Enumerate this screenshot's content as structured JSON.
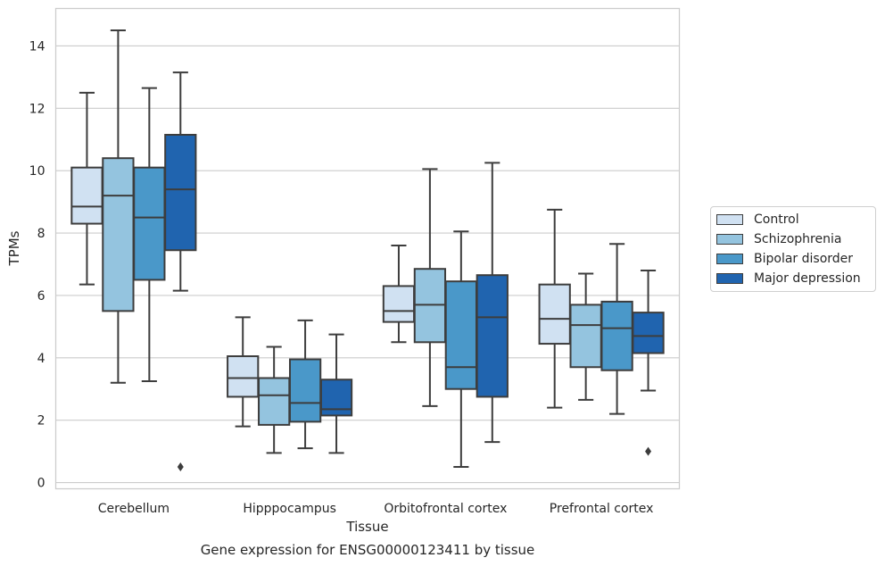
{
  "caption": "Gene expression for ENSG00000123411 by tissue",
  "chart_data": {
    "type": "box",
    "xlabel": "Tissue",
    "ylabel": "TPMs",
    "ylim": [
      -0.2,
      15.2
    ],
    "yticks": [
      0,
      2,
      4,
      6,
      8,
      10,
      12,
      14
    ],
    "grid": true,
    "legend_position": "right",
    "categories": [
      "Cerebellum",
      "Hipppocampus",
      "Orbitofrontal cortex",
      "Prefrontal cortex"
    ],
    "series": [
      {
        "name": "Control",
        "color": "#d0e1f2",
        "boxes": [
          {
            "whisker_low": 6.35,
            "q1": 8.3,
            "median": 8.85,
            "q3": 10.1,
            "whisker_high": 12.5,
            "outliers": []
          },
          {
            "whisker_low": 1.8,
            "q1": 2.75,
            "median": 3.35,
            "q3": 4.05,
            "whisker_high": 5.3,
            "outliers": []
          },
          {
            "whisker_low": 4.5,
            "q1": 5.15,
            "median": 5.5,
            "q3": 6.3,
            "whisker_high": 7.6,
            "outliers": []
          },
          {
            "whisker_low": 2.4,
            "q1": 4.45,
            "median": 5.25,
            "q3": 6.35,
            "whisker_high": 8.75,
            "outliers": []
          }
        ]
      },
      {
        "name": "Schizophrenia",
        "color": "#94c4df",
        "boxes": [
          {
            "whisker_low": 3.2,
            "q1": 5.5,
            "median": 9.2,
            "q3": 10.4,
            "whisker_high": 14.5,
            "outliers": []
          },
          {
            "whisker_low": 0.95,
            "q1": 1.85,
            "median": 2.8,
            "q3": 3.35,
            "whisker_high": 4.35,
            "outliers": []
          },
          {
            "whisker_low": 2.45,
            "q1": 4.5,
            "median": 5.7,
            "q3": 6.85,
            "whisker_high": 10.05,
            "outliers": []
          },
          {
            "whisker_low": 2.65,
            "q1": 3.7,
            "median": 5.05,
            "q3": 5.7,
            "whisker_high": 6.7,
            "outliers": []
          }
        ]
      },
      {
        "name": "Bipolar disorder",
        "color": "#4a98c9",
        "boxes": [
          {
            "whisker_low": 3.25,
            "q1": 6.5,
            "median": 8.5,
            "q3": 10.1,
            "whisker_high": 12.65,
            "outliers": []
          },
          {
            "whisker_low": 1.1,
            "q1": 1.95,
            "median": 2.55,
            "q3": 3.95,
            "whisker_high": 5.2,
            "outliers": []
          },
          {
            "whisker_low": 0.5,
            "q1": 3.0,
            "median": 3.7,
            "q3": 6.45,
            "whisker_high": 8.05,
            "outliers": []
          },
          {
            "whisker_low": 2.2,
            "q1": 3.6,
            "median": 4.95,
            "q3": 5.8,
            "whisker_high": 7.65,
            "outliers": []
          }
        ]
      },
      {
        "name": "Major depression",
        "color": "#2064af",
        "boxes": [
          {
            "whisker_low": 6.15,
            "q1": 7.45,
            "median": 9.4,
            "q3": 11.15,
            "whisker_high": 13.15,
            "outliers": [
              0.5
            ]
          },
          {
            "whisker_low": 0.95,
            "q1": 2.15,
            "median": 2.35,
            "q3": 3.3,
            "whisker_high": 4.75,
            "outliers": []
          },
          {
            "whisker_low": 1.3,
            "q1": 2.75,
            "median": 5.3,
            "q3": 6.65,
            "whisker_high": 10.25,
            "outliers": []
          },
          {
            "whisker_low": 2.95,
            "q1": 4.15,
            "median": 4.7,
            "q3": 5.45,
            "whisker_high": 6.8,
            "outliers": [
              1.0
            ]
          }
        ]
      }
    ]
  }
}
